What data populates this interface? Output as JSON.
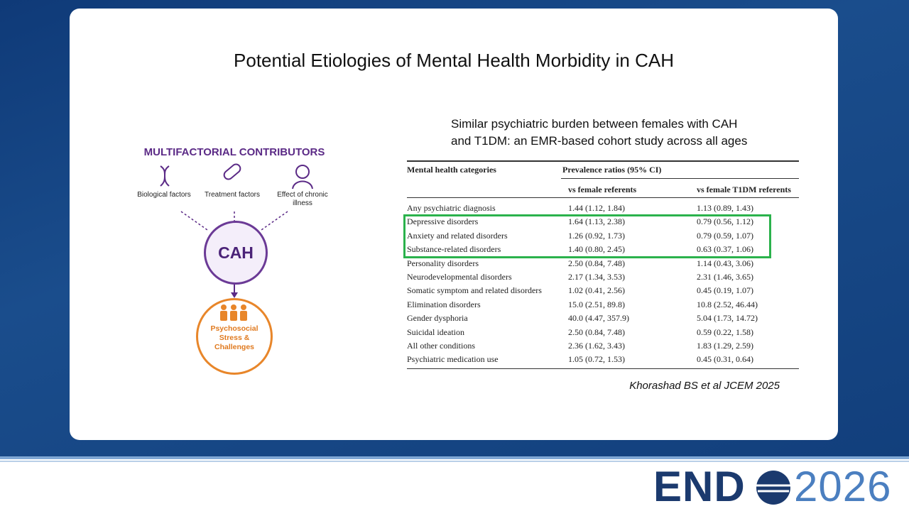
{
  "header": {
    "title": "Potential Etiologies of Mental Health Morbidity in CAH"
  },
  "diagram": {
    "heading": "MULTIFACTORIAL CONTRIBUTORS",
    "factors": [
      "Biological factors",
      "Treatment factors",
      "Effect of chronic illness"
    ],
    "center": "CAH",
    "outcome": "Psychosocial Stress & Challenges"
  },
  "study": {
    "subtitle_lines": [
      "Similar psychiatric burden between females with CAH",
      "and T1DM: an EMR-based cohort study across all ages"
    ],
    "citation": "Khorashad BS et al JCEM 2025"
  },
  "table": {
    "header": {
      "category": "Mental health categories",
      "group": "Prevalence ratios (95% CI)",
      "col1": "vs female referents",
      "col2": "vs female T1DM referents"
    },
    "rows": [
      [
        "Any psychiatric diagnosis",
        "1.44 (1.12, 1.84)",
        "1.13 (0.89, 1.43)"
      ],
      [
        "Depressive disorders",
        "1.64 (1.13, 2.38)",
        "0.79 (0.56, 1.12)"
      ],
      [
        "Anxiety and related disorders",
        "1.26 (0.92, 1.73)",
        "0.79 (0.59, 1.07)"
      ],
      [
        "Substance-related disorders",
        "1.40 (0.80, 2.45)",
        "0.63 (0.37, 1.06)"
      ],
      [
        "Personality disorders",
        "2.50 (0.84, 7.48)",
        "1.14 (0.43, 3.06)"
      ],
      [
        "Neurodevelopmental disorders",
        "2.17 (1.34, 3.53)",
        "2.31 (1.46, 3.65)"
      ],
      [
        "Somatic symptom and related disorders",
        "1.02 (0.41, 2.56)",
        "0.45 (0.19, 1.07)"
      ],
      [
        "Elimination disorders",
        "15.0 (2.51, 89.8)",
        "10.8 (2.52, 46.44)"
      ],
      [
        "Gender dysphoria",
        "40.0 (4.47, 357.9)",
        "5.04 (1.73, 14.72)"
      ],
      [
        "Suicidal ideation",
        "2.50 (0.84, 7.48)",
        "0.59 (0.22, 1.58)"
      ],
      [
        "All other conditions",
        "2.36 (1.62, 3.43)",
        "1.83 (1.29, 2.59)"
      ],
      [
        "Psychiatric medication use",
        "1.05 (0.72, 1.53)",
        "0.45 (0.31, 0.64)"
      ]
    ]
  },
  "logo": {
    "left": "END",
    "right": "2026"
  }
}
